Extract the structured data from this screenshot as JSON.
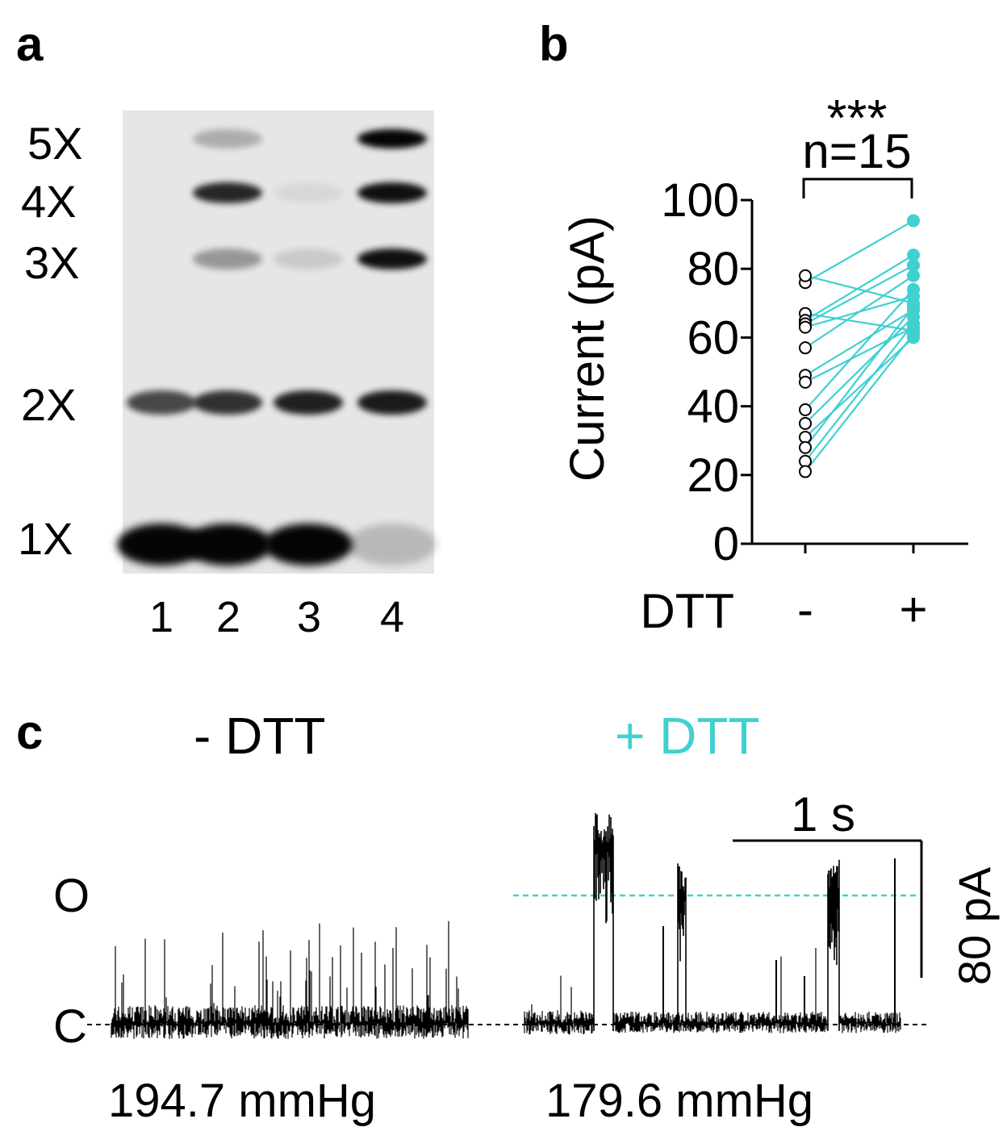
{
  "panels": {
    "a": "a",
    "b": "b",
    "c": "c"
  },
  "panel_a": {
    "band_labels": [
      "5X",
      "4X",
      "3X",
      "2X",
      "1X"
    ],
    "lane_labels": [
      "1",
      "2",
      "3",
      "4"
    ],
    "band_intensity": {
      "5X": [
        0,
        0.25,
        0,
        1.0
      ],
      "4X": [
        0,
        0.85,
        0.06,
        0.95
      ],
      "3X": [
        0,
        0.35,
        0.12,
        0.95
      ],
      "2X": [
        0.7,
        0.8,
        0.88,
        0.9
      ],
      "1X": [
        1.0,
        1.0,
        1.0,
        0.2
      ]
    }
  },
  "chart_data": [
    {
      "type": "scatter",
      "title": "",
      "significance": "***",
      "n_label": "n=15",
      "ylabel": "Current (pA)",
      "xlabel": "DTT",
      "categories": [
        "-",
        "+"
      ],
      "ylim": [
        0,
        100
      ],
      "yticks": [
        "0",
        "20",
        "40",
        "60",
        "80",
        "100"
      ],
      "series": [
        {
          "values": [
            76,
            94
          ]
        },
        {
          "values": [
            78,
            70
          ]
        },
        {
          "values": [
            67,
            62
          ]
        },
        {
          "values": [
            65,
            84
          ]
        },
        {
          "values": [
            64,
            81
          ]
        },
        {
          "values": [
            63,
            72
          ]
        },
        {
          "values": [
            57,
            78
          ]
        },
        {
          "values": [
            49,
            68
          ]
        },
        {
          "values": [
            47,
            63
          ]
        },
        {
          "values": [
            39,
            74
          ]
        },
        {
          "values": [
            35,
            66
          ]
        },
        {
          "values": [
            31,
            60
          ]
        },
        {
          "values": [
            28,
            69
          ]
        },
        {
          "values": [
            24,
            64
          ]
        },
        {
          "values": [
            21,
            61
          ]
        }
      ],
      "colors": {
        "minus": "#000000",
        "plus": "#40d0d0"
      }
    }
  ],
  "panel_c": {
    "conditions": [
      {
        "label": "- DTT",
        "pressure": "194.7 mmHg",
        "color": "#000000"
      },
      {
        "label": "+ DTT",
        "pressure": "179.6 mmHg",
        "color": "#40d0d0"
      }
    ],
    "state_open": "O",
    "state_closed": "C",
    "scale_time": "1 s",
    "scale_current": "80 pA"
  }
}
